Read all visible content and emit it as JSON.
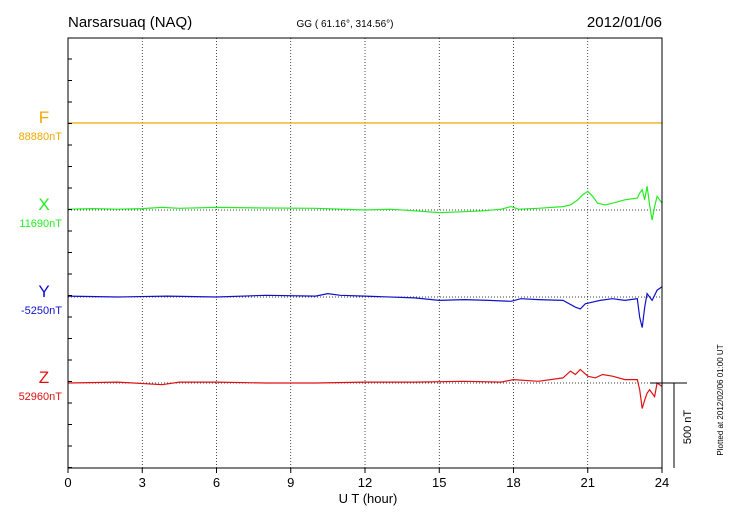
{
  "chart_data": {
    "type": "line",
    "title": "Narsarsuaq (NAQ)",
    "subtitle": "GG ( 61.16°, 314.56°)",
    "date": "2012/01/06",
    "xlabel": "U T (hour)",
    "xlim": [
      0,
      24
    ],
    "xticks": [
      "0",
      "3",
      "6",
      "9",
      "12",
      "15",
      "18",
      "21",
      "24"
    ],
    "scale_label": "500 nT",
    "scale_nT": 500,
    "plotted_note": "Plotted at 2012/02/06 01:00 UT",
    "grid": "dotted-vertical",
    "colors": {
      "F": "#f0a800",
      "X": "#22ee22",
      "Y": "#1010cc",
      "Z": "#e01010",
      "axis": "#000000"
    },
    "series": [
      {
        "name": "F",
        "baseline": "88880nT",
        "x": [
          0,
          6,
          12,
          18,
          24
        ],
        "y": [
          0,
          0,
          0,
          0,
          0
        ]
      },
      {
        "name": "X",
        "baseline": "11690nT",
        "x": [
          0,
          1,
          2,
          3,
          3.8,
          4.5,
          6,
          8,
          10,
          12,
          13,
          14,
          15,
          16,
          16.8,
          17.5,
          17.9,
          18.2,
          19,
          20,
          20.3,
          20.6,
          20.8,
          21.0,
          21.2,
          21.4,
          21.7,
          22,
          22.5,
          23,
          23.1,
          23.2,
          23.3,
          23.4,
          23.5,
          23.6,
          23.7,
          23.8,
          24
        ],
        "y": [
          5,
          8,
          5,
          8,
          15,
          10,
          15,
          12,
          10,
          0,
          5,
          -5,
          -15,
          -10,
          -5,
          5,
          20,
          5,
          10,
          20,
          30,
          60,
          90,
          110,
          80,
          40,
          30,
          40,
          60,
          70,
          100,
          120,
          60,
          140,
          30,
          -60,
          20,
          80,
          40
        ]
      },
      {
        "name": "Y",
        "baseline": "-5250nT",
        "x": [
          0,
          2,
          4,
          6,
          8,
          10,
          10.5,
          11,
          12,
          14,
          15,
          16,
          17,
          17.9,
          18.3,
          19,
          20,
          20.5,
          20.7,
          20.9,
          21.2,
          21.5,
          22,
          22.5,
          23,
          23.1,
          23.2,
          23.3,
          23.4,
          23.6,
          23.8,
          24
        ],
        "y": [
          5,
          0,
          5,
          0,
          10,
          5,
          20,
          10,
          5,
          -5,
          -20,
          -15,
          -20,
          -25,
          -10,
          -15,
          -20,
          -60,
          -70,
          -40,
          -30,
          -20,
          -10,
          -20,
          -10,
          -120,
          -180,
          -60,
          20,
          -20,
          40,
          60
        ]
      },
      {
        "name": "Z",
        "baseline": "52960nT",
        "x": [
          0,
          2,
          3.8,
          4.5,
          6,
          8,
          10,
          12,
          14,
          16,
          17.5,
          18,
          19,
          20,
          20.3,
          20.5,
          20.7,
          21.0,
          21.3,
          21.6,
          22,
          22.5,
          23,
          23.1,
          23.2,
          23.3,
          23.4,
          23.5,
          23.7,
          23.8,
          24
        ],
        "y": [
          0,
          5,
          -10,
          5,
          5,
          0,
          0,
          5,
          5,
          10,
          5,
          20,
          10,
          30,
          70,
          50,
          80,
          40,
          30,
          50,
          40,
          20,
          20,
          -40,
          -150,
          -100,
          -60,
          -40,
          -80,
          0,
          -20
        ]
      }
    ]
  }
}
